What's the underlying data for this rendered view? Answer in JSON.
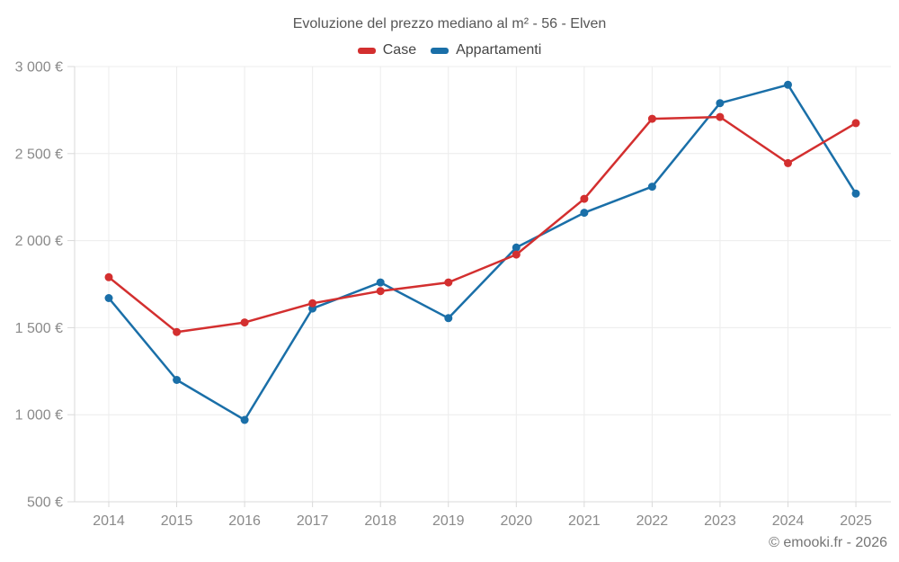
{
  "title": "Evoluzione del prezzo mediano al m² - 56 - Elven",
  "footer": "© emooki.fr - 2026",
  "colors": {
    "case_red": "#d32f2f",
    "appartamenti_blue": "#1a6fa8",
    "gridline": "#ececec",
    "axis": "#d9d9d9",
    "tick_label": "#8a8a8a",
    "title_text": "#565656",
    "footer_text": "#757575",
    "background": "#ffffff"
  },
  "chart_data": {
    "type": "line",
    "title": "Evoluzione del prezzo mediano al m² - 56 - Elven",
    "categories": [
      "2014",
      "2015",
      "2016",
      "2017",
      "2018",
      "2019",
      "2020",
      "2021",
      "2022",
      "2023",
      "2024",
      "2025"
    ],
    "series": [
      {
        "name": "Case",
        "color": "#d32f2f",
        "values": [
          1790,
          1475,
          1530,
          1640,
          1710,
          1760,
          1920,
          2240,
          2700,
          2710,
          2445,
          2675
        ]
      },
      {
        "name": "Appartamenti",
        "color": "#1a6fa8",
        "values": [
          1670,
          1200,
          970,
          1610,
          1760,
          1555,
          1960,
          2160,
          2310,
          2790,
          2895,
          2270
        ]
      }
    ],
    "ylim": [
      500,
      3000
    ],
    "yticks": [
      {
        "value": 500,
        "label": "500 €"
      },
      {
        "value": 1000,
        "label": "1 000 €"
      },
      {
        "value": 1500,
        "label": "1 500 €"
      },
      {
        "value": 2000,
        "label": "2 000 €"
      },
      {
        "value": 2500,
        "label": "2 500 €"
      },
      {
        "value": 3000,
        "label": "3 000 €"
      }
    ],
    "ylabel": "",
    "xlabel": "",
    "grid": true,
    "legend_position": "top",
    "marker": "circle"
  }
}
